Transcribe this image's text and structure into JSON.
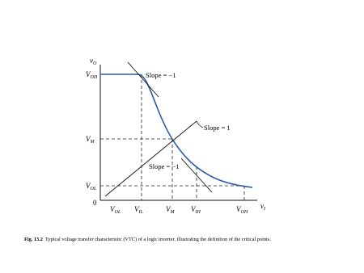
{
  "axes": {
    "y_label": {
      "symbol": "v",
      "sub": "O"
    },
    "x_label": {
      "symbol": "v",
      "sub": "I"
    },
    "origin": "0"
  },
  "y_ticks": [
    {
      "symbol": "V",
      "sub": "OH"
    },
    {
      "symbol": "V",
      "sub": "M"
    },
    {
      "symbol": "V",
      "sub": "OL"
    }
  ],
  "x_ticks": [
    {
      "symbol": "V",
      "sub": "OL"
    },
    {
      "symbol": "V",
      "sub": "IL"
    },
    {
      "symbol": "V",
      "sub": "M"
    },
    {
      "symbol": "V",
      "sub": "IH"
    },
    {
      "symbol": "V",
      "sub": "OH"
    }
  ],
  "annotations": [
    "Slope = −1",
    "Slope = 1",
    "Slope = −1"
  ],
  "caption": {
    "label": "Fig. 13.2",
    "text": "Typical voltage transfer characteristic (VTC) of a logic inverter, illustrating the definition of the critical points."
  }
}
